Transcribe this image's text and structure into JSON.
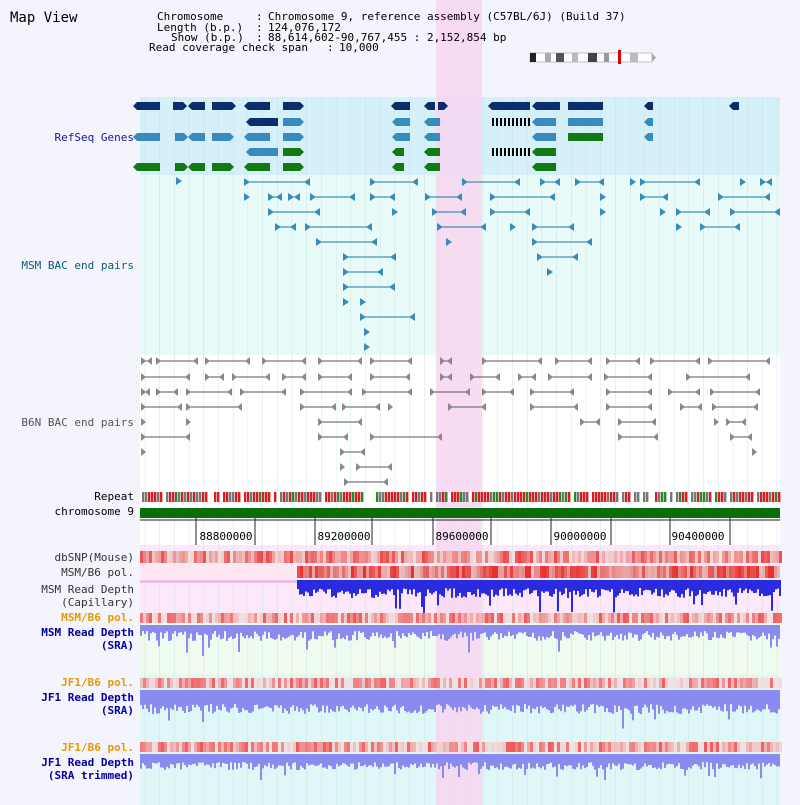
{
  "header": {
    "title": "Map View",
    "chromosome_label": "Chromosome",
    "chromosome_value": "Chromosome 9, reference assembly (C57BL/6J) (Build 37)",
    "length_label": "Length (b.p.)",
    "length_value": "124,076,172",
    "show_label": "Show (b.p.)",
    "show_value": "88,614,602-90,767,455 : 2,152,854 bp",
    "coverage_label": "Read coverage check span",
    "coverage_value": "10,000"
  },
  "tracks": {
    "refseq": "RefSeq Genes",
    "msm_bac": "MSM BAC end pairs",
    "b6n_bac": "B6N BAC end pairs",
    "repeat": "Repeat",
    "chromosome": "chromosome 9",
    "dbsnp": "dbSNP(Mouse)",
    "msm_b6_pol_1": "MSM/B6 pol.",
    "msm_depth_cap_1": "MSM Read Depth",
    "msm_depth_cap_2": "(Capillary)",
    "msm_b6_pol_2": "MSM/B6 pol.",
    "msm_depth_sra_1": "MSM Read Depth",
    "msm_depth_sra_2": "(SRA)",
    "jf1_b6_pol_1": "JF1/B6 pol.",
    "jf1_depth_sra_1": "JF1 Read Depth",
    "jf1_depth_sra_2": "(SRA)",
    "jf1_b6_pol_2": "JF1/B6 pol.",
    "jf1_depth_trim_1": "JF1 Read Depth",
    "jf1_depth_trim_2": "(SRA trimmed)"
  },
  "axis": {
    "ticks": [
      "88800000",
      "89200000",
      "89600000",
      "90000000",
      "90400000"
    ]
  },
  "colors": {
    "refseq_dark": "#0b2d6b",
    "refseq_mid": "#3a8bbd",
    "refseq_green": "#137a13",
    "highlight": "#f7d6f0",
    "snp": "#e83a3a",
    "depth_blue": "#2a2ae0",
    "depth_light": "#8a8af0",
    "orange_label": "#e89a00",
    "navy_label": "#0000a0"
  }
}
